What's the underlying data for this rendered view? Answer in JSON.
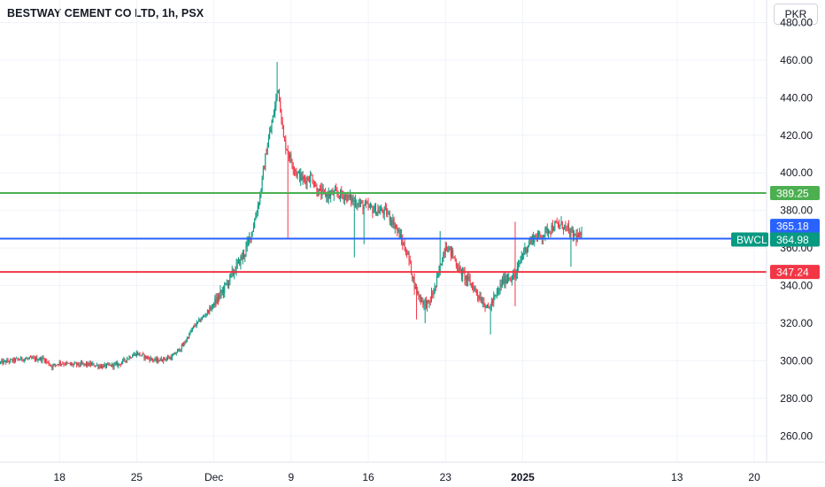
{
  "header": {
    "title": "BESTWAY CEMENT CO LTD, 1h, PSX",
    "currency": "PKR"
  },
  "colors": {
    "up": "#089981",
    "down": "#f23645",
    "green_line": "#4caf50",
    "blue_line": "#2962ff",
    "red_line": "#f23645",
    "grid": "#f0f3fa",
    "axis_border": "#e0e3eb"
  },
  "chart_data": {
    "type": "candlestick",
    "symbol": "BWCL",
    "y_axis": {
      "ticks": [
        "480.00",
        "460.00",
        "440.00",
        "420.00",
        "400.00",
        "380.00",
        "360.00",
        "340.00",
        "320.00",
        "300.00",
        "280.00",
        "260.00"
      ],
      "tick_values": [
        480,
        460,
        440,
        420,
        400,
        380,
        360,
        340,
        320,
        300,
        280,
        260
      ],
      "ylim": [
        246,
        492
      ]
    },
    "x_axis": {
      "ticks": [
        {
          "label": "18",
          "index": 55,
          "bold": false
        },
        {
          "label": "25",
          "index": 127,
          "bold": false
        },
        {
          "label": "Dec",
          "index": 199,
          "bold": false
        },
        {
          "label": "9",
          "index": 271,
          "bold": false
        },
        {
          "label": "16",
          "index": 343,
          "bold": false
        },
        {
          "label": "23",
          "index": 415,
          "bold": false
        },
        {
          "label": "2025",
          "index": 487,
          "bold": true
        },
        {
          "label": "13",
          "index": 631,
          "bold": false
        },
        {
          "label": "20",
          "index": 703,
          "bold": false
        }
      ],
      "bars_total": 715
    },
    "levels": [
      {
        "name": "resistance",
        "value": 389.25,
        "label": "389.25",
        "color": "#4caf50"
      },
      {
        "name": "current",
        "value": 364.98,
        "label": "364.98",
        "color": "#2962ff"
      },
      {
        "name": "support",
        "value": 347.24,
        "label": "347.24",
        "color": "#f23645"
      }
    ],
    "price_tags": [
      {
        "text": "365.18",
        "value": 365.18,
        "color": "#2962ff"
      },
      {
        "text": "364.98",
        "value": 364.98,
        "color": "#089981",
        "symbol": "BWCL"
      }
    ],
    "anchors": [
      [
        0,
        299
      ],
      [
        20,
        301
      ],
      [
        40,
        301
      ],
      [
        48,
        297
      ],
      [
        55,
        299
      ],
      [
        65,
        298
      ],
      [
        85,
        298
      ],
      [
        95,
        297
      ],
      [
        110,
        298
      ],
      [
        120,
        302
      ],
      [
        127,
        304
      ],
      [
        135,
        302
      ],
      [
        145,
        300
      ],
      [
        160,
        302
      ],
      [
        170,
        308
      ],
      [
        180,
        318
      ],
      [
        190,
        324
      ],
      [
        199,
        330
      ],
      [
        208,
        338
      ],
      [
        218,
        348
      ],
      [
        228,
        358
      ],
      [
        236,
        372
      ],
      [
        242,
        388
      ],
      [
        248,
        412
      ],
      [
        255,
        432
      ],
      [
        259,
        446
      ],
      [
        264,
        418
      ],
      [
        270,
        408
      ],
      [
        276,
        400
      ],
      [
        283,
        396
      ],
      [
        290,
        398
      ],
      [
        296,
        390
      ],
      [
        305,
        388
      ],
      [
        312,
        389
      ],
      [
        320,
        388
      ],
      [
        327,
        386
      ],
      [
        333,
        384
      ],
      [
        341,
        382
      ],
      [
        350,
        380
      ],
      [
        360,
        379
      ],
      [
        368,
        372
      ],
      [
        374,
        364
      ],
      [
        380,
        356
      ],
      [
        387,
        338
      ],
      [
        393,
        332
      ],
      [
        399,
        330
      ],
      [
        406,
        340
      ],
      [
        412,
        355
      ],
      [
        415,
        362
      ],
      [
        422,
        356
      ],
      [
        428,
        348
      ],
      [
        434,
        344
      ],
      [
        440,
        340
      ],
      [
        448,
        333
      ],
      [
        455,
        328
      ],
      [
        462,
        334
      ],
      [
        468,
        342
      ],
      [
        474,
        345
      ],
      [
        480,
        344
      ],
      [
        486,
        356
      ],
      [
        492,
        362
      ],
      [
        498,
        366
      ],
      [
        504,
        366
      ],
      [
        511,
        370
      ],
      [
        518,
        372
      ],
      [
        525,
        372
      ],
      [
        531,
        368
      ],
      [
        537,
        366
      ],
      [
        542,
        366
      ]
    ],
    "spikes": [
      {
        "index": 258,
        "high": 459
      },
      {
        "index": 268,
        "low": 365
      },
      {
        "index": 330,
        "low": 355
      },
      {
        "index": 339,
        "low": 362
      },
      {
        "index": 388,
        "low": 322
      },
      {
        "index": 396,
        "low": 320
      },
      {
        "index": 410,
        "high": 369
      },
      {
        "index": 457,
        "low": 314
      },
      {
        "index": 480,
        "high": 374,
        "low": 329
      },
      {
        "index": 532,
        "low": 350
      }
    ]
  }
}
